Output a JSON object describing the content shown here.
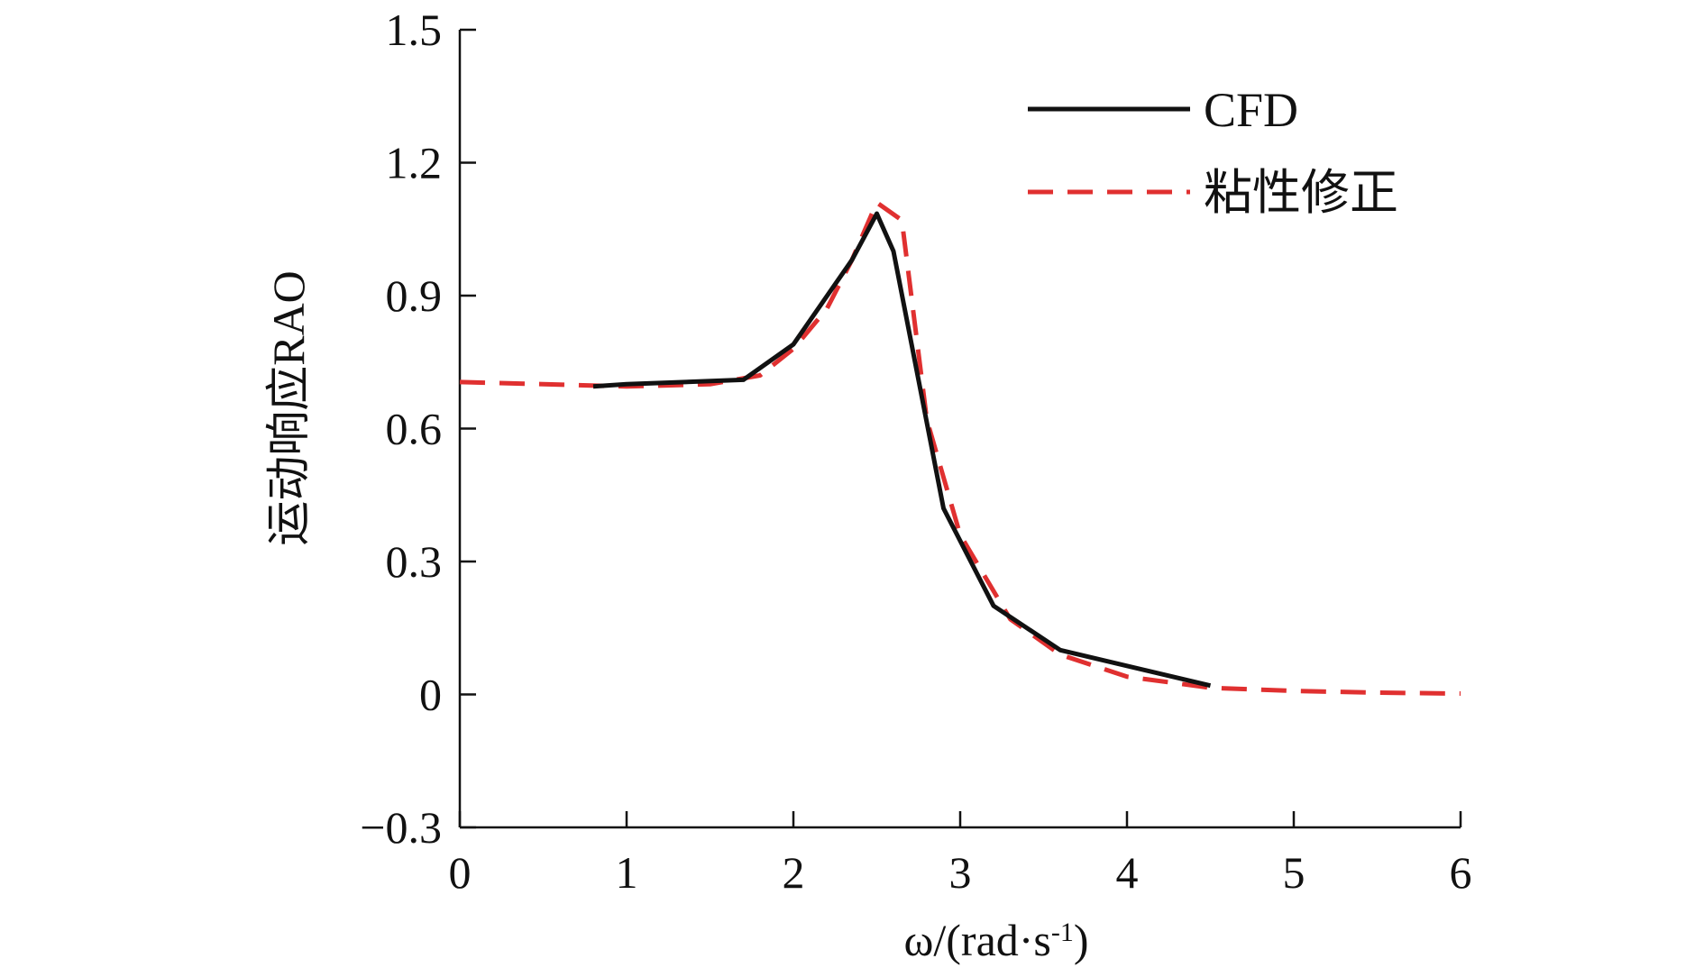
{
  "chart_data": {
    "type": "line",
    "xlabel": {
      "main": "ω/(rad·s",
      "sup": "-1",
      "close": ")"
    },
    "ylabel": "运动响应RAO",
    "xlim": [
      0,
      6
    ],
    "ylim": [
      -0.3,
      1.5
    ],
    "xticks": [
      {
        "value": 0,
        "label": "0"
      },
      {
        "value": 1,
        "label": "1"
      },
      {
        "value": 2,
        "label": "2"
      },
      {
        "value": 3,
        "label": "3"
      },
      {
        "value": 4,
        "label": "4"
      },
      {
        "value": 5,
        "label": "5"
      },
      {
        "value": 6,
        "label": "6"
      }
    ],
    "yticks": [
      {
        "value": -0.3,
        "label": "−0.3"
      },
      {
        "value": 0,
        "label": "0"
      },
      {
        "value": 0.3,
        "label": "0.3"
      },
      {
        "value": 0.6,
        "label": "0.6"
      },
      {
        "value": 0.9,
        "label": "0.9"
      },
      {
        "value": 1.2,
        "label": "1.2"
      },
      {
        "value": 1.5,
        "label": "1.5"
      }
    ],
    "grid": false,
    "legend_position": "top-right",
    "series": [
      {
        "name": "CFD",
        "color": "#111111",
        "style": "solid",
        "x": [
          0.8,
          1.0,
          1.7,
          2.0,
          2.35,
          2.5,
          2.6,
          2.9,
          3.2,
          3.6,
          4.5
        ],
        "y": [
          0.695,
          0.7,
          0.71,
          0.79,
          0.98,
          1.085,
          1.0,
          0.42,
          0.2,
          0.1,
          0.02
        ]
      },
      {
        "name": "粘性修正",
        "color": "#e03030",
        "style": "dashed",
        "x": [
          0.0,
          0.5,
          1.0,
          1.5,
          1.8,
          2.0,
          2.2,
          2.35,
          2.5,
          2.65,
          2.8,
          3.0,
          3.3,
          3.6,
          4.0,
          4.5,
          5.0,
          5.5,
          6.0
        ],
        "y": [
          0.705,
          0.7,
          0.695,
          0.7,
          0.72,
          0.78,
          0.87,
          0.98,
          1.11,
          1.07,
          0.62,
          0.36,
          0.17,
          0.09,
          0.04,
          0.015,
          0.008,
          0.004,
          0.002
        ]
      }
    ]
  }
}
